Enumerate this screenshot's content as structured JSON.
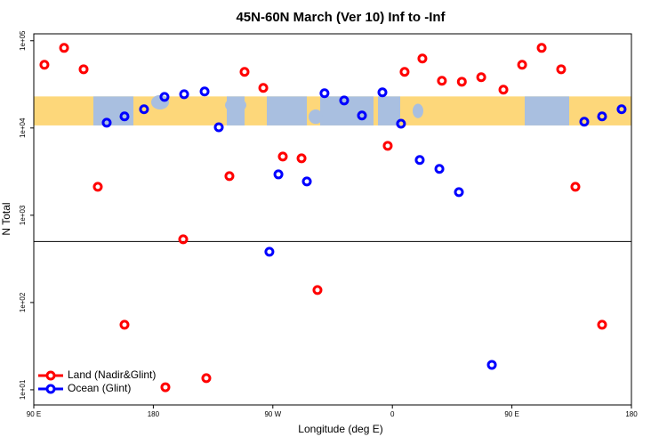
{
  "chart_data": {
    "type": "scatter",
    "title": "45N-60N March (Ver 10)   Inf to -Inf",
    "x_label": "Longitude (deg E)",
    "y_label": "N Total",
    "xlim": [
      90,
      540
    ],
    "xticks": [
      {
        "value": 90,
        "label": "90 E"
      },
      {
        "value": 180,
        "label": "180"
      },
      {
        "value": 270,
        "label": "90 W"
      },
      {
        "value": 360,
        "label": "0"
      },
      {
        "value": 450,
        "label": "90 E"
      },
      {
        "value": 540,
        "label": "180"
      }
    ],
    "ylim": [
      6.7,
      120000
    ],
    "log_y": true,
    "yticks": [
      {
        "value": 10,
        "label": "1e+01"
      },
      {
        "value": 100,
        "label": "1e+02"
      },
      {
        "value": 1000,
        "label": "1e+03"
      },
      {
        "value": 10000,
        "label": "1e+04"
      },
      {
        "value": 100000,
        "label": "1e+05"
      }
    ],
    "hline": 500,
    "map_band": [
      10700,
      23000
    ],
    "legend": "bottom-left",
    "series": [
      {
        "name": "Land (Nadir&Glint)",
        "color": "#ff0000",
        "x": [
          98.0,
          112.8,
          127.5,
          138.2,
          158.3,
          189.1,
          202.5,
          219.9,
          237.3,
          248.7,
          262.8,
          277.5,
          291.6,
          303.6,
          356.5,
          369.2,
          382.6,
          397.3,
          412.3,
          426.9,
          443.6,
          457.7,
          472.4,
          487.1,
          497.8,
          517.9
        ],
        "values": [
          53000,
          82800,
          47100,
          2120,
          55.6,
          10.7,
          530,
          13.6,
          2810,
          44000,
          28800,
          4710,
          4490,
          139,
          6250,
          44000,
          62500,
          34800,
          33900,
          38200,
          27500,
          53000,
          82800,
          47100,
          2120,
          55.6
        ]
      },
      {
        "name": "Ocean (Glint)",
        "color": "#0000ff",
        "x": [
          144.9,
          158.3,
          173.0,
          188.4,
          203.2,
          218.6,
          229.3,
          274.2,
          267.4,
          295.6,
          308.9,
          323.7,
          337.1,
          352.5,
          366.5,
          380.6,
          395.4,
          410.1,
          434.9,
          504.5,
          517.9,
          532.6
        ],
        "values": [
          11500,
          13600,
          16400,
          22700,
          24400,
          26200,
          10200,
          2940,
          382,
          2440,
          25000,
          20700,
          13900,
          25600,
          11200,
          4300,
          3400,
          1840,
          19.3,
          11800,
          13600,
          16400
        ]
      }
    ]
  }
}
